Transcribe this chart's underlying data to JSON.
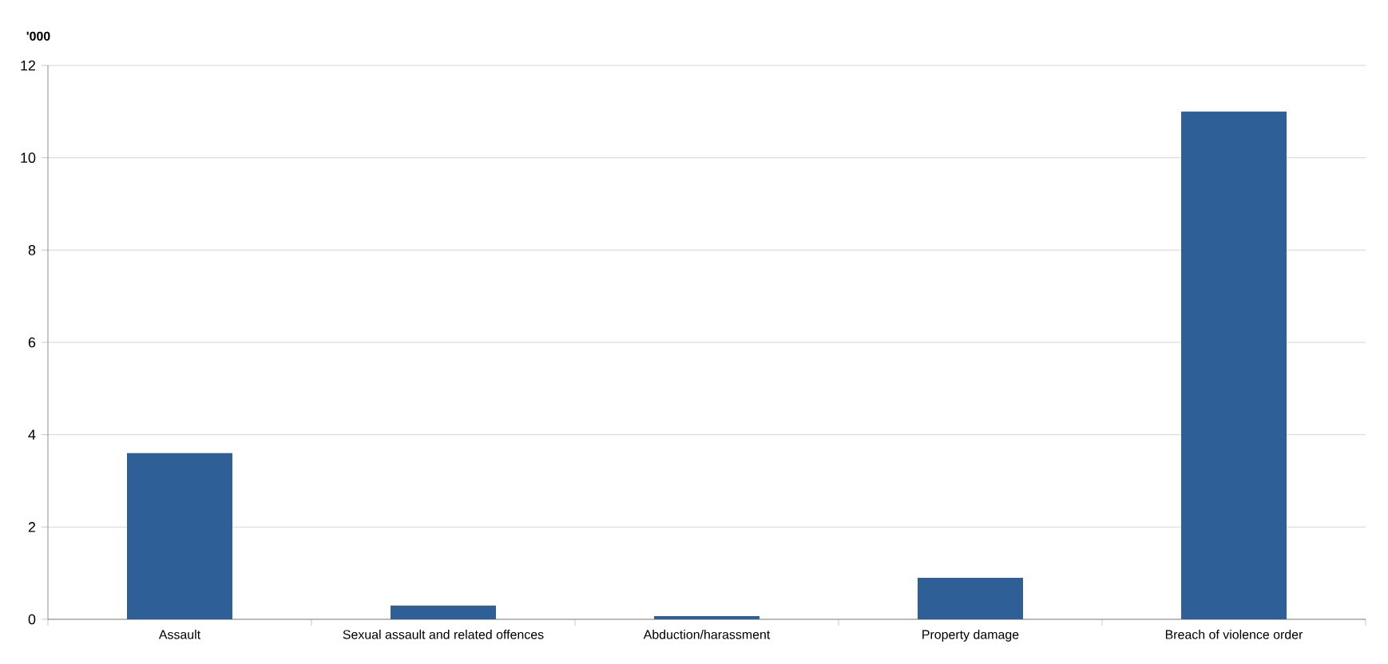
{
  "chart_data": {
    "type": "bar",
    "ylabel": "'000",
    "categories": [
      "Assault",
      "Sexual assault and related offences",
      "Abduction/harassment",
      "Property damage",
      "Breach of violence order"
    ],
    "values": [
      3.6,
      0.3,
      0.07,
      0.9,
      11.0
    ],
    "color": "#2f5f97",
    "ylim": [
      0,
      12
    ],
    "yticks": [
      0,
      2,
      4,
      6,
      8,
      10,
      12
    ],
    "grid": "y"
  }
}
